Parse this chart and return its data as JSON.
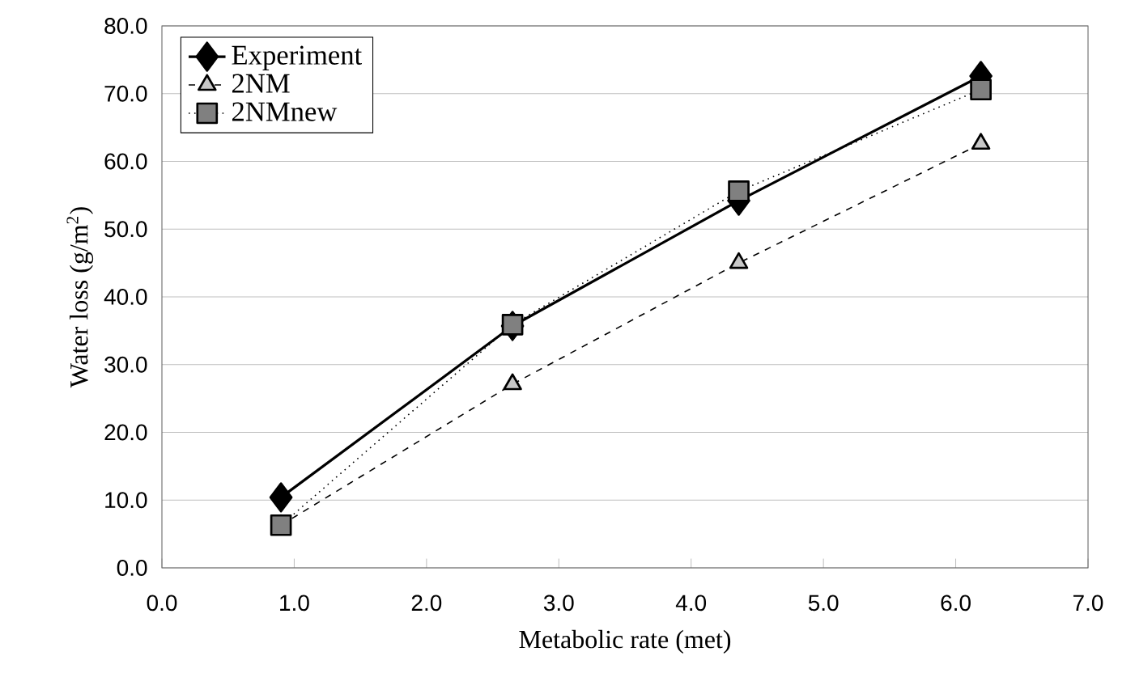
{
  "chart_data": {
    "type": "line",
    "xlabel": "Metabolic rate (met)",
    "ylabel": "Water loss (g/m$^{2}$)",
    "xlim": [
      0,
      7
    ],
    "ylim": [
      0,
      80
    ],
    "xticks": [
      {
        "value": 0,
        "label": "0.0"
      },
      {
        "value": 1,
        "label": "1.0"
      },
      {
        "value": 2,
        "label": "2.0"
      },
      {
        "value": 3,
        "label": "3.0"
      },
      {
        "value": 4,
        "label": "4.0"
      },
      {
        "value": 5,
        "label": "5.0"
      },
      {
        "value": 6,
        "label": "6.0"
      },
      {
        "value": 7,
        "label": "7.0"
      }
    ],
    "yticks": [
      {
        "value": 0,
        "label": "0.0"
      },
      {
        "value": 10,
        "label": "10.0"
      },
      {
        "value": 20,
        "label": "20.0"
      },
      {
        "value": 30,
        "label": "30.0"
      },
      {
        "value": 40,
        "label": "40.0"
      },
      {
        "value": 50,
        "label": "50.0"
      },
      {
        "value": 60,
        "label": "60.0"
      },
      {
        "value": 70,
        "label": "70.0"
      },
      {
        "value": 80,
        "label": "80.0"
      }
    ],
    "x": [
      0.9,
      2.65,
      4.36,
      6.19
    ],
    "grid": "y",
    "legend": "top left",
    "series": [
      {
        "name": "Experiment",
        "color": "#000000",
        "marker": "diamond",
        "line_style": "solid",
        "values": [
          10.4,
          35.7,
          54.2,
          72.6
        ]
      },
      {
        "name": "2NM",
        "color": "#c8c8c8",
        "marker": "triangle",
        "line_style": "dashed",
        "values": [
          6.3,
          27.1,
          45.0,
          62.6
        ]
      },
      {
        "name": "2NMnew",
        "color": "#808080",
        "marker": "square",
        "line_style": "dotted",
        "values": [
          6.3,
          35.9,
          55.6,
          70.6
        ]
      }
    ]
  }
}
